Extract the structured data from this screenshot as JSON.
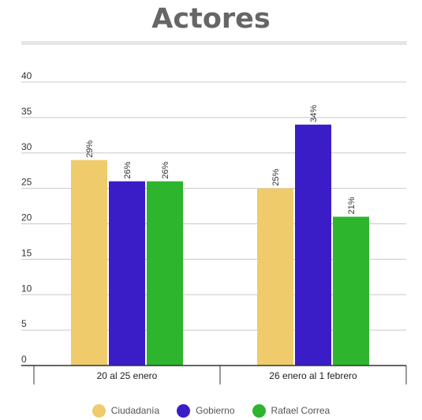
{
  "chart_data": {
    "type": "bar",
    "title": "Actores",
    "categories": [
      "20 al 25 enero",
      "26 enero al 1 febrero"
    ],
    "series": [
      {
        "name": "Ciudadanía",
        "values": [
          29,
          25
        ],
        "labels": [
          "29%",
          "25%"
        ],
        "color": "#f0cb6b"
      },
      {
        "name": "Gobierno",
        "values": [
          26,
          34
        ],
        "labels": [
          "26%",
          "34%"
        ],
        "color": "#3b1dc8"
      },
      {
        "name": "Rafael Correa",
        "values": [
          26,
          21
        ],
        "labels": [
          "26%",
          "21%"
        ],
        "color": "#2db52d"
      }
    ],
    "ylim": [
      0,
      40
    ],
    "yticks": [
      "0",
      "5",
      "10",
      "15",
      "20",
      "25",
      "30",
      "35",
      "40"
    ],
    "grid": true,
    "legend": "bottom"
  }
}
